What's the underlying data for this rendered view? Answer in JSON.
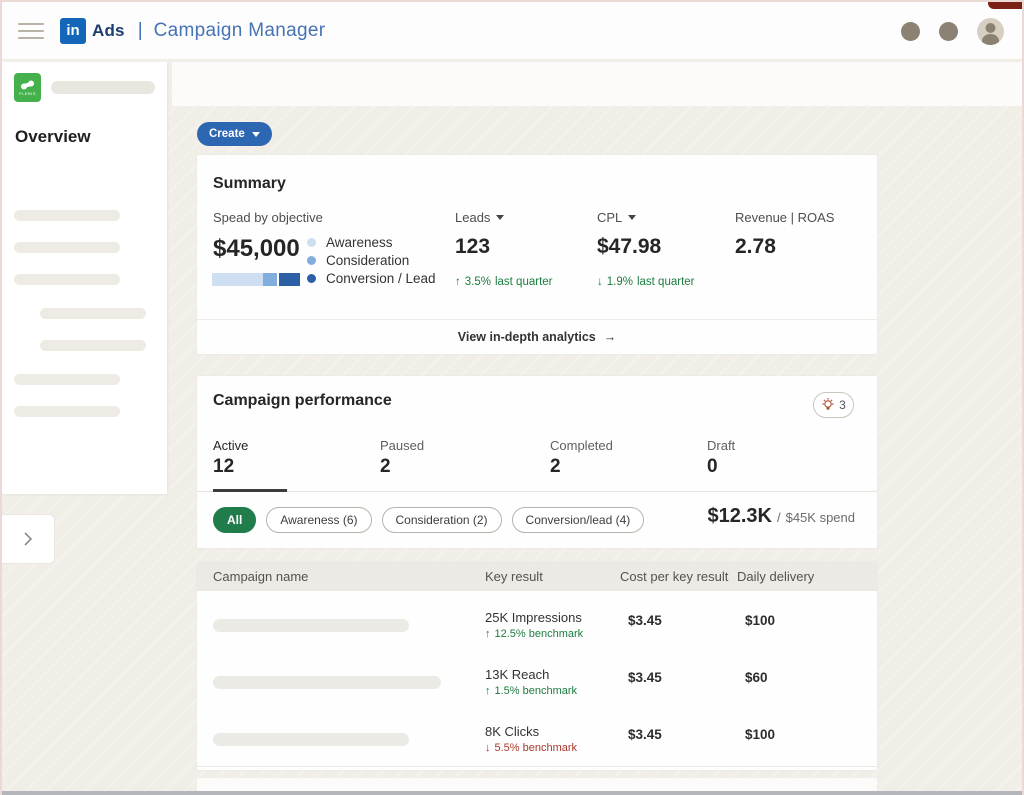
{
  "icons": {
    "up_arrow": "↑",
    "down_arrow": "↓",
    "right_arrow": "→"
  },
  "colors": {
    "linkedin_blue": "#1467b8",
    "header_text_blue": "#4673b4",
    "create_button": "#2e67b1",
    "selected_pill_green": "#207d4b",
    "delta_green": "#1c7c40",
    "delta_red": "#a8392c"
  },
  "header": {
    "logo_in": "in",
    "logo_ads": "Ads",
    "separator": "|",
    "app_title": "Campaign Manager"
  },
  "sidebar": {
    "logo_word": "PLERIS",
    "overview_label": "Overview"
  },
  "toolbar": {
    "create_label": "Create"
  },
  "summary": {
    "title": "Summary",
    "spend": {
      "label": "Spead by objective",
      "value": "$45,000",
      "legend": [
        {
          "label": "Awareness",
          "color": "#cfdff2",
          "pct": 58
        },
        {
          "label": "Consideration",
          "color": "#82aede",
          "pct": 16
        },
        {
          "label": "Conversion / Lead",
          "color": "#2d5fa7",
          "pct": 26
        }
      ]
    },
    "metrics": [
      {
        "label": "Leads",
        "value": "123",
        "delta": "3.5%",
        "delta_suffix": "last quarter"
      },
      {
        "label": "CPL",
        "value": "$47.98",
        "delta": "1.9%",
        "delta_suffix": "last quarter"
      },
      {
        "label": "Revenue | ROAS",
        "value": "2.78"
      }
    ],
    "footer_link": "View in-depth analytics"
  },
  "performance": {
    "title": "Campaign performance",
    "insights_count": "3",
    "tabs": [
      {
        "label": "Active",
        "count": "12"
      },
      {
        "label": "Paused",
        "count": "2"
      },
      {
        "label": "Completed",
        "count": "2"
      },
      {
        "label": "Draft",
        "count": "0"
      }
    ],
    "filters": [
      {
        "label": "All"
      },
      {
        "label": "Awareness (6)"
      },
      {
        "label": "Consideration (2)"
      },
      {
        "label": "Conversion/lead (4)"
      }
    ],
    "spend_summary": {
      "current": "$12.3K",
      "divider": "/",
      "total": "$45K spend"
    }
  },
  "table": {
    "columns": [
      "Campaign name",
      "Key result",
      "Cost per key result",
      "Daily delivery"
    ],
    "rows": [
      {
        "key_result": "25K Impressions",
        "benchmark": "12.5% benchmark",
        "cost": "$3.45",
        "delivery": "$100"
      },
      {
        "key_result": "13K Reach",
        "benchmark": "1.5% benchmark",
        "cost": "$3.45",
        "delivery": "$60"
      },
      {
        "key_result": "8K Clicks",
        "benchmark": "5.5% benchmark",
        "cost": "$3.45",
        "delivery": "$100"
      }
    ]
  }
}
